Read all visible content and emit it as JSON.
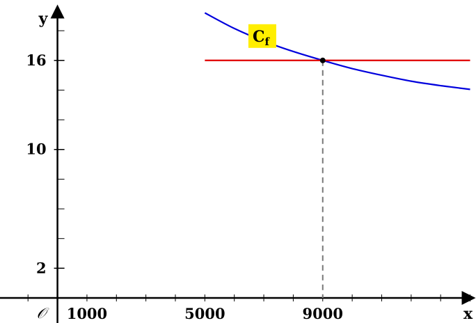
{
  "chart_data": {
    "type": "line",
    "xlabel": "x",
    "ylabel": "y",
    "origin_label": "𝒪",
    "xlim": [
      -1950,
      14200
    ],
    "ylim": [
      0,
      19.6
    ],
    "x_ticks": [
      1000,
      5000,
      9000
    ],
    "y_ticks": [
      2,
      10,
      16
    ],
    "x_minor_step": 1000,
    "y_minor_step": 2,
    "series": [
      {
        "label": "Cf",
        "color": "#0000dd",
        "points": [
          {
            "x": 5000,
            "y": 19.2
          },
          {
            "x": 6000,
            "y": 18.15
          },
          {
            "x": 7000,
            "y": 17.3
          },
          {
            "x": 8000,
            "y": 16.6
          },
          {
            "x": 9000,
            "y": 16.0
          },
          {
            "x": 10000,
            "y": 15.45
          },
          {
            "x": 11000,
            "y": 15.0
          },
          {
            "x": 12000,
            "y": 14.6
          },
          {
            "x": 13000,
            "y": 14.3
          },
          {
            "x": 14000,
            "y": 14.05
          }
        ]
      },
      {
        "color": "#e00000",
        "points": [
          {
            "x": 5000,
            "y": 16
          },
          {
            "x": 14000,
            "y": 16
          }
        ]
      }
    ],
    "intersection": {
      "x": 9000,
      "y": 16
    },
    "curve_label": {
      "main": "C",
      "sub": "f",
      "x": 6950,
      "y": 17.5,
      "background": "#ffee00"
    }
  }
}
